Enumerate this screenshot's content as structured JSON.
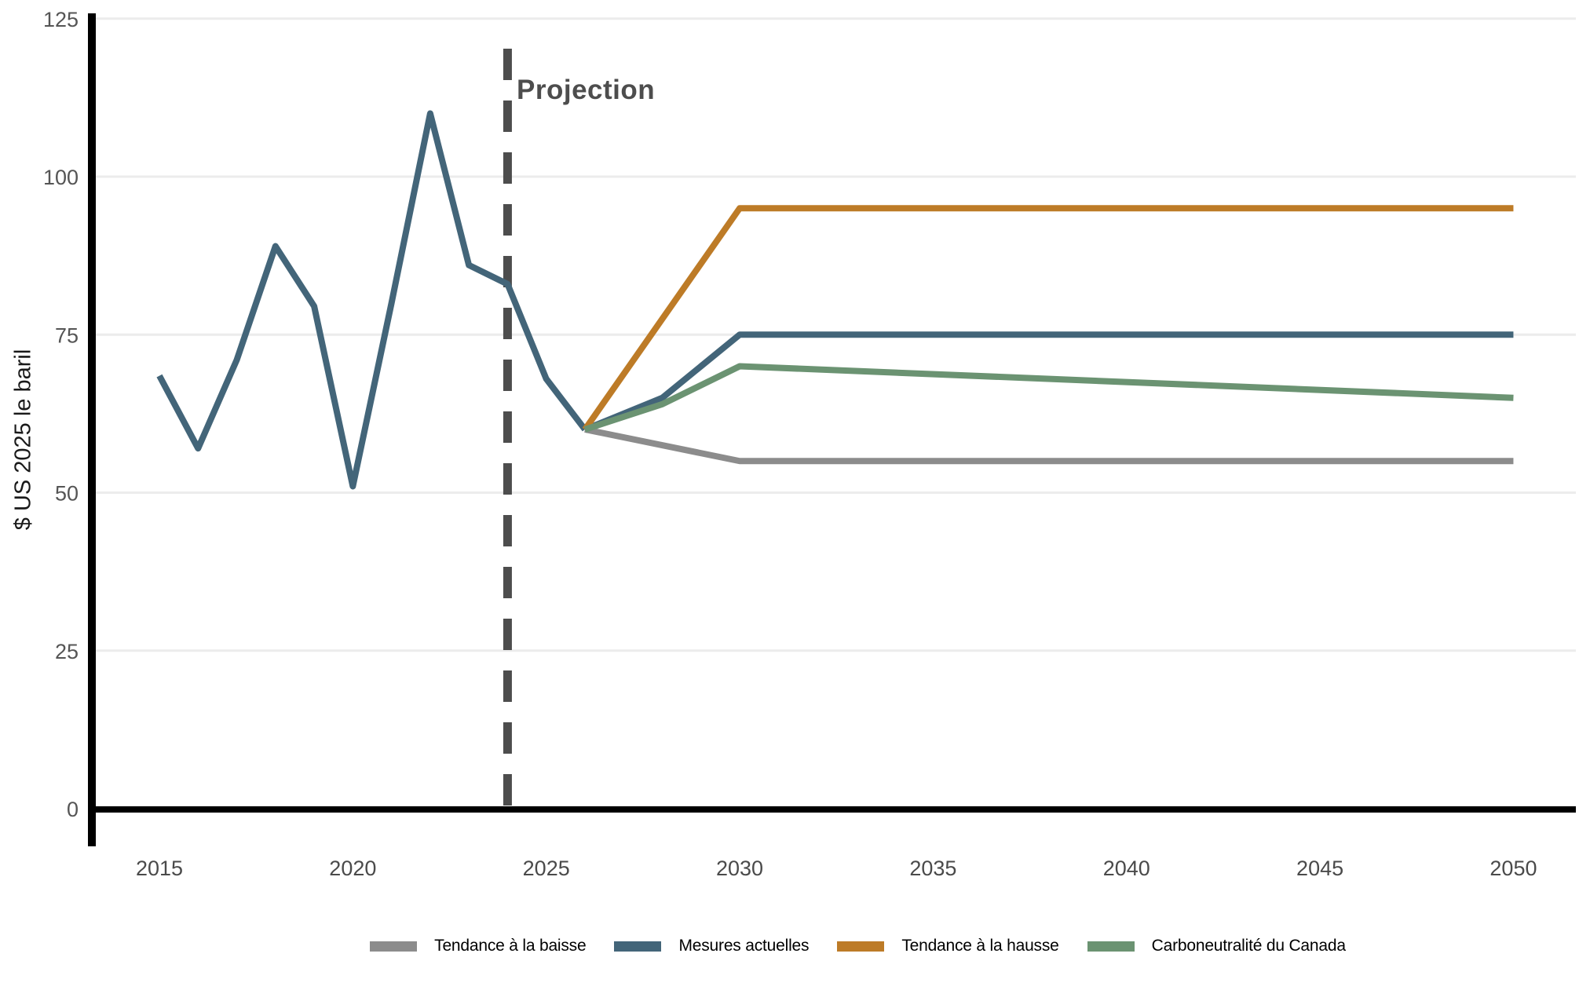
{
  "chart_data": {
    "type": "line",
    "title": "",
    "xlabel": "",
    "ylabel": "$ US 2025 le baril",
    "ylim": [
      0,
      125
    ],
    "xlim": [
      2013,
      2052
    ],
    "yticks": [
      0,
      25,
      50,
      75,
      100,
      125
    ],
    "xticks": [
      2015,
      2020,
      2025,
      2030,
      2035,
      2040,
      2045,
      2050
    ],
    "grid": "horizontal",
    "annotation": {
      "label": "Projection",
      "x": 2024
    },
    "series": [
      {
        "id": "historique",
        "label": "",
        "color": "#436579",
        "points": [
          [
            2015,
            68.5
          ],
          [
            2016,
            57
          ],
          [
            2017,
            71
          ],
          [
            2018,
            89
          ],
          [
            2019,
            79.5
          ],
          [
            2020,
            51
          ],
          [
            2021,
            80
          ],
          [
            2022,
            110
          ],
          [
            2023,
            86
          ],
          [
            2024,
            83
          ],
          [
            2025,
            68
          ],
          [
            2026,
            60
          ]
        ]
      },
      {
        "id": "tendance-baisse",
        "label": "Tendance à la baisse",
        "color": "#8c8c8c",
        "points": [
          [
            2026,
            60
          ],
          [
            2030,
            55
          ],
          [
            2050,
            55
          ]
        ]
      },
      {
        "id": "mesures-actuelles",
        "label": "Mesures actuelles",
        "color": "#436579",
        "points": [
          [
            2026,
            60
          ],
          [
            2028,
            65
          ],
          [
            2030,
            75
          ],
          [
            2050,
            75
          ]
        ]
      },
      {
        "id": "tendance-hausse",
        "label": "Tendance à la hausse",
        "color": "#bd7b27",
        "points": [
          [
            2026,
            60
          ],
          [
            2030,
            95
          ],
          [
            2050,
            95
          ]
        ]
      },
      {
        "id": "carboneutralite",
        "label": "Carboneutralité du Canada",
        "color": "#6b9372",
        "points": [
          [
            2026,
            60
          ],
          [
            2028,
            64
          ],
          [
            2030,
            70
          ],
          [
            2050,
            65
          ]
        ]
      }
    ],
    "legend": {
      "position": "bottom",
      "items": [
        {
          "label": "Tendance à la baisse",
          "color": "#8c8c8c"
        },
        {
          "label": "Mesures actuelles",
          "color": "#436579"
        },
        {
          "label": "Tendance à la hausse",
          "color": "#bd7b27"
        },
        {
          "label": "Carboneutralité du Canada",
          "color": "#6b9372"
        }
      ]
    },
    "colors": {
      "gridline": "#ececec",
      "axis": "#000000",
      "projection_divider": "#4d4d4d",
      "x_tick_label": "#4a4a4a",
      "y_tick_label": "#555555"
    }
  }
}
